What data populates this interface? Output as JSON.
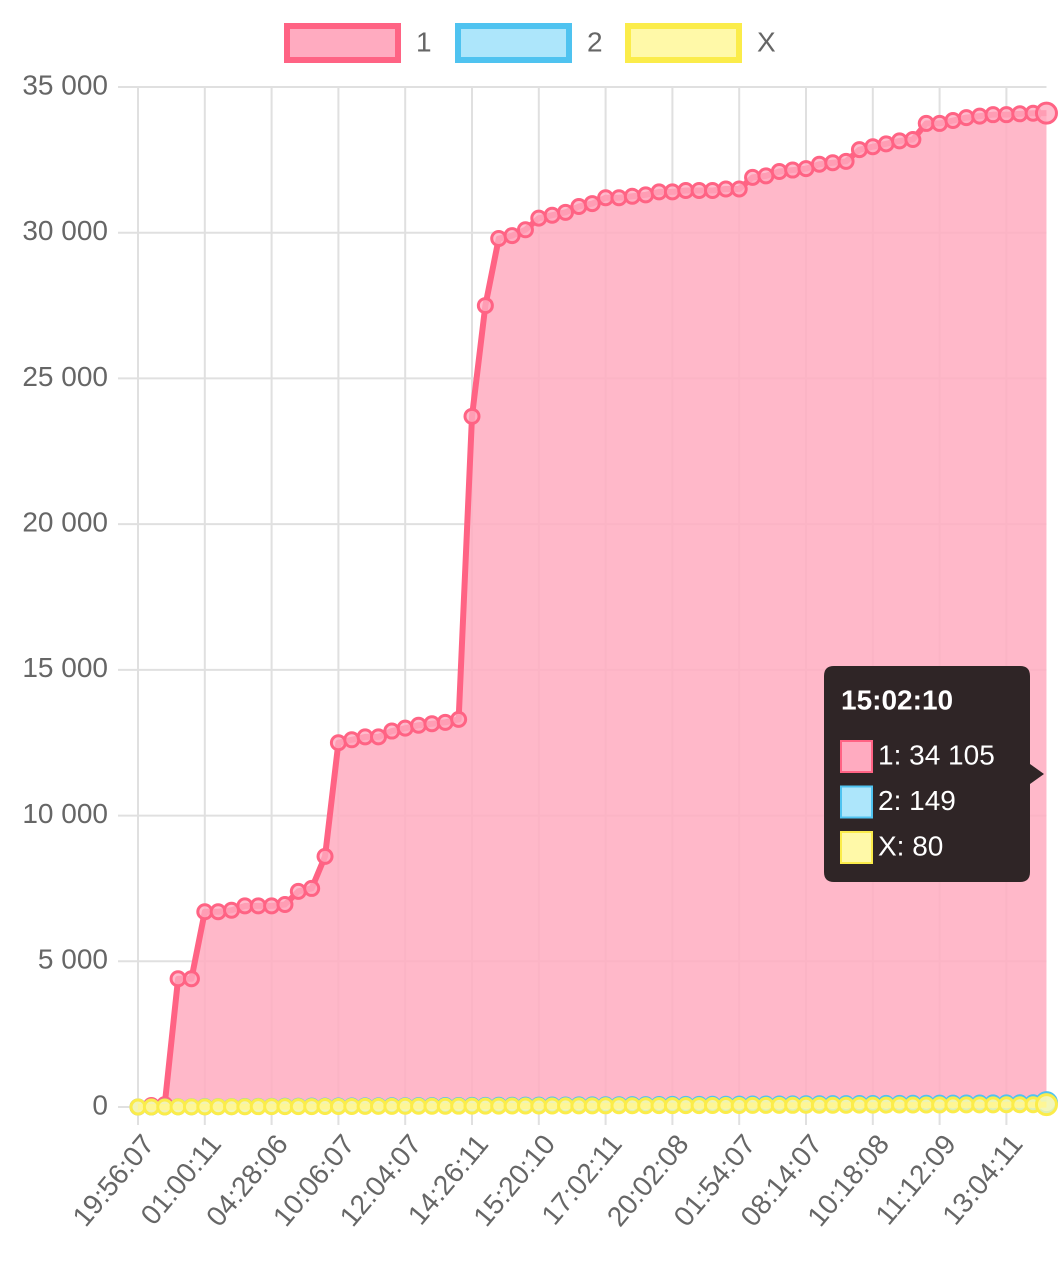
{
  "chart_data": {
    "type": "line",
    "categories": [
      "19:56:07",
      null,
      null,
      null,
      null,
      "01:00:11",
      null,
      null,
      null,
      null,
      "04:28:06",
      null,
      null,
      null,
      null,
      "10:06:07",
      null,
      null,
      null,
      null,
      "12:04:07",
      null,
      null,
      null,
      null,
      "14:26:11",
      null,
      null,
      null,
      null,
      "15:20:10",
      null,
      null,
      null,
      null,
      "17:02:11",
      null,
      null,
      null,
      null,
      "20:02:08",
      null,
      null,
      null,
      null,
      "01:54:07",
      null,
      null,
      null,
      null,
      "08:14:07",
      null,
      null,
      null,
      null,
      "10:18:08",
      null,
      null,
      null,
      null,
      "11:12:09",
      null,
      null,
      null,
      null,
      "13:04:11",
      null,
      null,
      null
    ],
    "series": [
      {
        "name": "1",
        "color": "#ff6384",
        "fill": "#ffabc0",
        "values": [
          0,
          50,
          80,
          4400,
          4400,
          6700,
          6700,
          6750,
          6900,
          6900,
          6900,
          6950,
          7400,
          7500,
          8600,
          12500,
          12600,
          12700,
          12700,
          12900,
          13000,
          13100,
          13150,
          13200,
          13300,
          23700,
          27500,
          29800,
          29900,
          30100,
          30500,
          30600,
          30700,
          30900,
          31000,
          31200,
          31200,
          31250,
          31300,
          31400,
          31400,
          31450,
          31450,
          31450,
          31500,
          31500,
          31900,
          31950,
          32100,
          32150,
          32200,
          32350,
          32400,
          32450,
          32850,
          32950,
          33050,
          33150,
          33200,
          33750,
          33750,
          33850,
          33950,
          34000,
          34050,
          34050,
          34080,
          34100,
          34105
        ]
      },
      {
        "name": "2",
        "color": "#4fc3f0",
        "fill": "#ade6fb",
        "values": [
          0,
          2,
          4,
          7,
          9,
          11,
          13,
          15,
          18,
          20,
          22,
          24,
          26,
          28,
          31,
          33,
          35,
          37,
          39,
          42,
          44,
          46,
          48,
          50,
          53,
          55,
          57,
          59,
          61,
          64,
          66,
          68,
          70,
          72,
          74,
          77,
          79,
          81,
          83,
          85,
          88,
          90,
          92,
          94,
          96,
          99,
          101,
          103,
          105,
          107,
          110,
          112,
          114,
          116,
          118,
          120,
          123,
          125,
          127,
          129,
          131,
          134,
          136,
          138,
          140,
          142,
          145,
          147,
          149
        ]
      },
      {
        "name": "X",
        "color": "#fbec4a",
        "fill": "#fff9a8",
        "values": [
          0,
          1,
          2,
          4,
          5,
          6,
          7,
          8,
          9,
          11,
          12,
          13,
          14,
          15,
          16,
          18,
          19,
          20,
          21,
          22,
          24,
          25,
          26,
          27,
          28,
          29,
          31,
          32,
          33,
          34,
          35,
          36,
          38,
          39,
          40,
          41,
          42,
          44,
          45,
          46,
          47,
          48,
          49,
          51,
          52,
          53,
          54,
          55,
          56,
          58,
          59,
          60,
          61,
          62,
          64,
          65,
          66,
          67,
          68,
          69,
          71,
          72,
          73,
          74,
          75,
          76,
          78,
          79,
          80
        ]
      }
    ],
    "ylim": [
      0,
      35000
    ],
    "yticks": [
      0,
      {
        "value": 5000,
        "label": "5 000"
      },
      {
        "value": 10000,
        "label": "10 000"
      },
      {
        "value": 15000,
        "label": "15 000"
      },
      {
        "value": 20000,
        "label": "20 000"
      },
      {
        "value": 25000,
        "label": "25 000"
      },
      {
        "value": 30000,
        "label": "30 000"
      },
      {
        "value": 35000,
        "label": "35 000"
      }
    ],
    "grid": true,
    "legend": "top",
    "tooltip": {
      "title": "15:02:10",
      "items": [
        "1: 34 105",
        "2: 149",
        "X: 80"
      ]
    }
  }
}
